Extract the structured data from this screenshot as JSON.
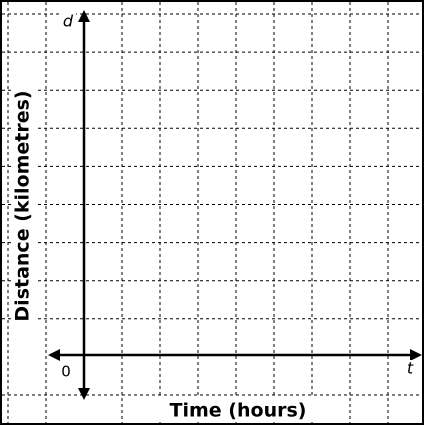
{
  "axes": {
    "y_symbol": "d",
    "x_symbol": "t",
    "origin": "0"
  },
  "titles": {
    "y_title": "Distance (kilometres)",
    "x_title": "Time (hours)"
  }
}
